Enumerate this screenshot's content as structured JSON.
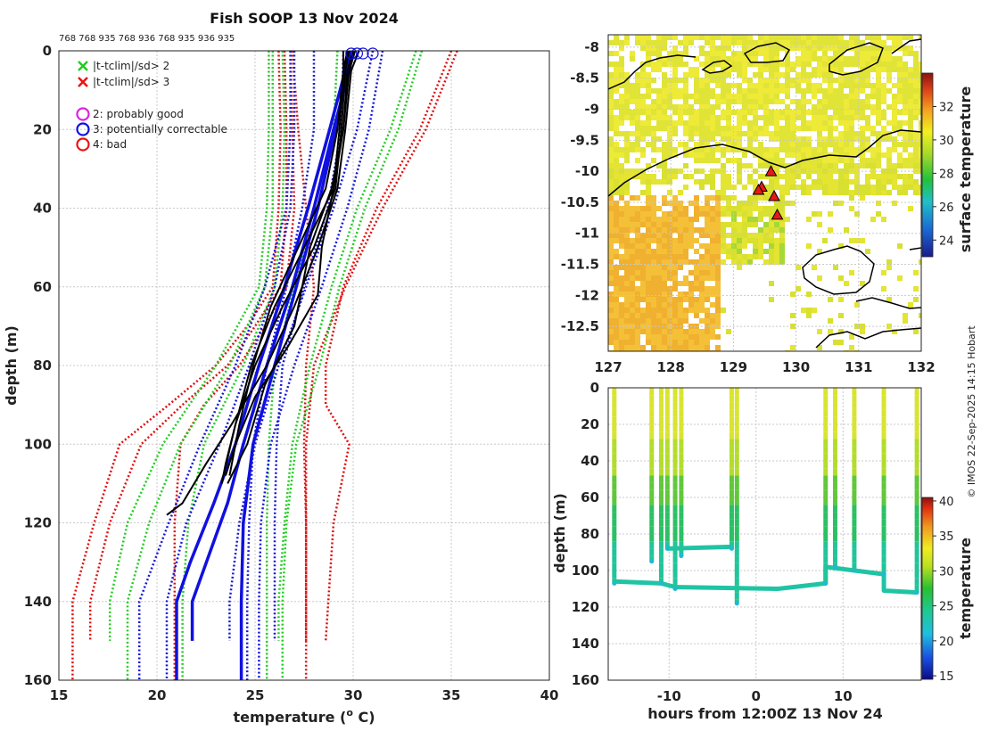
{
  "chart_data": [
    {
      "type": "line",
      "title": "Fish SOOP 13 Nov 2024",
      "top_labels": "768 768 935 768 936 768 935 936 935",
      "xlabel": "temperature (",
      "xlabel_sup": "o",
      "xlabel_end": " C)",
      "ylabel": "depth (m)",
      "xlim": [
        15,
        40
      ],
      "ylim": [
        0,
        160
      ],
      "x_ticks": [
        "15",
        "20",
        "25",
        "30",
        "35",
        "40"
      ],
      "y_ticks": [
        "0",
        "20",
        "40",
        "60",
        "80",
        "100",
        "120",
        "140",
        "160"
      ],
      "legend": [
        {
          "marker": "x",
          "color": "#22cc22",
          "label": "|t-tclim|/sd> 2"
        },
        {
          "marker": "x",
          "color": "#ee1111",
          "label": "|t-tclim|/sd> 3"
        },
        {
          "marker": "o",
          "color": "#dd22dd",
          "label": "2: probably good"
        },
        {
          "marker": "o",
          "color": "#1111dd",
          "label": "3: potentially correctable"
        },
        {
          "marker": "o",
          "color": "#ee1111",
          "label": "4: bad"
        }
      ],
      "climatology_red": [
        {
          "depth": [
            0,
            20,
            40,
            60,
            80,
            100,
            120,
            140,
            150
          ],
          "temp": [
            26.9,
            27.2,
            27.6,
            28.0,
            27.6,
            27.5,
            27.6,
            27.6,
            27.6
          ]
        },
        {
          "depth": [
            0,
            20,
            40,
            60,
            80,
            100,
            120,
            140,
            160
          ],
          "temp": [
            35.3,
            33.7,
            31.5,
            29.6,
            28.0,
            27.6,
            27.6,
            27.6,
            27.6
          ]
        },
        {
          "depth": [
            0,
            20,
            40,
            60,
            80,
            90,
            100,
            120,
            150
          ],
          "temp": [
            35.0,
            33.4,
            31.2,
            29.5,
            28.6,
            28.6,
            29.8,
            29.0,
            28.6
          ]
        },
        {
          "depth": [
            0,
            20,
            40,
            60,
            70,
            80,
            90,
            100,
            120,
            140,
            160
          ],
          "temp": [
            26.8,
            26.9,
            27.0,
            26.6,
            25.5,
            24.2,
            22.4,
            21.2,
            20.9,
            20.9,
            20.9
          ]
        },
        {
          "depth": [
            0,
            20,
            40,
            60,
            70,
            80,
            90,
            100,
            120,
            140,
            150
          ],
          "temp": [
            26.5,
            26.6,
            26.6,
            26.3,
            25.0,
            23.6,
            21.3,
            19.2,
            17.6,
            16.6,
            16.6
          ]
        },
        {
          "depth": [
            0,
            20,
            40,
            60,
            70,
            80,
            90,
            100,
            120,
            140,
            160
          ],
          "temp": [
            26.2,
            26.3,
            26.2,
            25.9,
            24.6,
            23.0,
            20.6,
            18.1,
            16.8,
            15.7,
            15.7
          ]
        }
      ],
      "climatology_green": [
        {
          "depth": [
            0,
            20,
            40,
            60,
            80,
            100,
            120,
            140,
            160
          ],
          "temp": [
            33.5,
            32.3,
            30.6,
            29.3,
            28.3,
            27.1,
            26.6,
            26.4,
            26.4
          ]
        },
        {
          "depth": [
            0,
            20,
            40,
            60,
            80,
            100,
            120,
            140,
            150
          ],
          "temp": [
            33.2,
            31.9,
            30.2,
            28.9,
            27.8,
            26.9,
            26.5,
            26.2,
            26.2
          ]
        },
        {
          "depth": [
            0,
            20,
            40,
            60,
            80,
            100,
            120,
            140,
            160
          ],
          "temp": [
            26.4,
            26.5,
            26.4,
            26.0,
            24.4,
            22.4,
            21.6,
            21.3,
            21.3
          ]
        },
        {
          "depth": [
            0,
            20,
            40,
            60,
            80,
            100,
            120,
            140,
            160
          ],
          "temp": [
            25.9,
            25.9,
            25.9,
            25.5,
            23.7,
            21.2,
            19.6,
            18.5,
            18.5
          ]
        },
        {
          "depth": [
            0,
            20,
            40,
            60,
            80,
            100,
            120,
            140,
            150
          ],
          "temp": [
            25.7,
            25.7,
            25.6,
            25.2,
            23.0,
            20.3,
            18.5,
            17.6,
            17.6
          ]
        },
        {
          "depth": [
            0,
            20,
            40,
            60,
            80,
            100,
            120,
            140,
            160
          ],
          "temp": [
            29.2,
            29.0,
            28.2,
            27.0,
            26.0,
            25.7,
            25.6,
            25.6,
            25.6
          ]
        }
      ],
      "climatology_blue": [
        {
          "depth": [
            0,
            20,
            40,
            60,
            80,
            100,
            120,
            140,
            160
          ],
          "temp": [
            31.5,
            30.8,
            29.7,
            28.4,
            27.0,
            25.8,
            25.3,
            25.2,
            25.2
          ]
        },
        {
          "depth": [
            0,
            20,
            40,
            60,
            80,
            100,
            120,
            140,
            150
          ],
          "temp": [
            31.0,
            30.2,
            29.0,
            27.6,
            26.2,
            25.0,
            24.2,
            23.7,
            23.7
          ]
        },
        {
          "depth": [
            0,
            20,
            40,
            60,
            80,
            100,
            120,
            140,
            160
          ],
          "temp": [
            28.0,
            28.0,
            27.4,
            26.6,
            25.6,
            24.9,
            24.7,
            24.6,
            24.6
          ]
        },
        {
          "depth": [
            0,
            20,
            40,
            60,
            80,
            100,
            120,
            140,
            160
          ],
          "temp": [
            27.0,
            27.0,
            26.8,
            26.0,
            24.7,
            23.2,
            21.5,
            20.5,
            20.5
          ]
        },
        {
          "depth": [
            0,
            20,
            40,
            60,
            80,
            100,
            120,
            140,
            160
          ],
          "temp": [
            26.8,
            26.8,
            26.6,
            25.5,
            24.0,
            22.2,
            20.6,
            19.1,
            19.1
          ]
        },
        {
          "depth": [
            0,
            20,
            40,
            60,
            80,
            100,
            120,
            140,
            150
          ],
          "temp": [
            29.5,
            29.4,
            28.7,
            27.5,
            26.4,
            26.1,
            26.0,
            26.0,
            26.0
          ]
        }
      ],
      "profiles_blue": [
        {
          "depth": [
            0,
            5,
            20,
            40,
            60,
            80,
            100,
            120,
            140,
            160
          ],
          "temp": [
            29.9,
            29.7,
            29.1,
            28.2,
            27.1,
            26.0,
            24.9,
            24.4,
            24.3,
            24.3
          ]
        },
        {
          "depth": [
            0,
            5,
            20,
            40,
            60,
            80,
            100,
            115,
            140,
            150
          ],
          "temp": [
            30.0,
            29.8,
            29.0,
            28.0,
            26.9,
            25.6,
            24.4,
            23.6,
            21.8,
            21.8
          ]
        },
        {
          "depth": [
            0,
            5,
            20,
            40,
            60,
            80,
            100,
            115,
            130,
            140,
            160
          ],
          "temp": [
            29.8,
            29.6,
            28.8,
            27.7,
            26.5,
            25.2,
            24.0,
            22.9,
            21.7,
            21.0,
            21.0
          ]
        }
      ],
      "profiles_black": [
        {
          "depth": [
            0,
            5,
            20,
            35,
            50,
            65,
            80,
            95,
            105,
            115,
            118
          ],
          "temp": [
            30.3,
            29.9,
            29.6,
            29.2,
            28.2,
            27.0,
            25.6,
            23.8,
            22.5,
            21.3,
            20.5
          ]
        },
        {
          "depth": [
            0,
            5,
            20,
            35,
            50,
            65,
            80,
            95,
            105,
            110
          ],
          "temp": [
            29.8,
            29.6,
            29.4,
            29.1,
            28.0,
            26.4,
            25.0,
            24.0,
            23.5,
            23.3
          ]
        },
        {
          "depth": [
            0,
            5,
            20,
            35,
            50,
            62,
            75,
            88,
            100,
            108
          ],
          "temp": [
            29.5,
            29.5,
            29.3,
            29.0,
            28.4,
            28.2,
            26.7,
            25.0,
            24.0,
            23.5
          ]
        },
        {
          "depth": [
            0,
            5,
            20,
            35,
            50,
            65,
            80,
            95,
            110
          ],
          "temp": [
            30.0,
            29.7,
            29.5,
            29.0,
            27.5,
            26.0,
            24.8,
            24.0,
            23.3
          ]
        },
        {
          "depth": [
            0,
            5,
            20,
            35,
            50,
            65,
            80,
            95,
            108
          ],
          "temp": [
            29.7,
            29.5,
            29.2,
            28.6,
            27.2,
            25.8,
            24.9,
            24.2,
            23.7
          ]
        },
        {
          "depth": [
            0,
            5,
            20,
            35,
            50,
            70,
            85,
            100,
            110
          ],
          "temp": [
            30.1,
            29.8,
            29.5,
            28.9,
            27.8,
            27.0,
            25.5,
            24.6,
            23.6
          ]
        }
      ],
      "flag_markers": [
        {
          "temp": 29.9,
          "depth": 0,
          "color": "#1111dd"
        },
        {
          "temp": 30.2,
          "depth": 0,
          "color": "#1111dd"
        },
        {
          "temp": 30.5,
          "depth": 0,
          "color": "#1111dd"
        },
        {
          "temp": 31.0,
          "depth": 0,
          "color": "#1111dd"
        }
      ]
    },
    {
      "type": "heatmap",
      "title": "",
      "xlim": [
        127,
        132
      ],
      "ylim": [
        -12.9,
        -7.8
      ],
      "x_ticks": [
        "127",
        "128",
        "129",
        "130",
        "131",
        "132"
      ],
      "y_ticks": [
        "-8",
        "-8.5",
        "-9",
        "-9.5",
        "-10",
        "-10.5",
        "-11",
        "-11.5",
        "-12",
        "-12.5"
      ],
      "colorbar_label": "surface temperature",
      "colorbar_ticks": [
        "24",
        "26",
        "28",
        "30",
        "32"
      ],
      "colorbar_range": [
        23,
        34
      ],
      "stations": [
        {
          "lon": 129.6,
          "lat": -10.0
        },
        {
          "lon": 129.45,
          "lat": -10.25
        },
        {
          "lon": 129.4,
          "lat": -10.3
        },
        {
          "lon": 129.65,
          "lat": -10.4
        },
        {
          "lon": 129.7,
          "lat": -10.7
        }
      ]
    },
    {
      "type": "scatter",
      "title": "",
      "xlabel": "hours from 12:00Z 13 Nov 24",
      "ylabel": "depth (m)",
      "xlim": [
        -17,
        19
      ],
      "ylim": [
        0,
        160
      ],
      "x_ticks": [
        "-10",
        "0",
        "10"
      ],
      "y_ticks": [
        "0",
        "20",
        "40",
        "60",
        "80",
        "100",
        "120",
        "140",
        "160"
      ],
      "colorbar_label": "temperature",
      "colorbar_ticks": [
        "15",
        "20",
        "25",
        "30",
        "35",
        "40"
      ],
      "colorbar_range": [
        14.5,
        40.5
      ],
      "drops": [
        {
          "hour": -16.3,
          "max_depth": 107
        },
        {
          "hour": -12.0,
          "max_depth": 95
        },
        {
          "hour": -10.9,
          "max_depth": 107
        },
        {
          "hour": -10.2,
          "max_depth": 88
        },
        {
          "hour": -9.3,
          "max_depth": 110
        },
        {
          "hour": -8.6,
          "max_depth": 92
        },
        {
          "hour": -2.8,
          "max_depth": 88
        },
        {
          "hour": -2.2,
          "max_depth": 118
        },
        {
          "hour": 8.0,
          "max_depth": 107
        },
        {
          "hour": 9.1,
          "max_depth": 98
        },
        {
          "hour": 11.3,
          "max_depth": 100
        },
        {
          "hour": 14.7,
          "max_depth": 102
        },
        {
          "hour": 18.5,
          "max_depth": 112
        }
      ],
      "bottom_track": [
        {
          "hour": -16.3,
          "depth": 106
        },
        {
          "hour": -10.9,
          "depth": 107
        },
        {
          "hour": -9.3,
          "depth": 109
        },
        {
          "hour": 2.5,
          "depth": 110
        },
        {
          "hour": 8.0,
          "depth": 107
        },
        {
          "hour": 8.0,
          "depth": 98
        },
        {
          "hour": 14.7,
          "depth": 102
        },
        {
          "hour": 14.7,
          "depth": 111
        },
        {
          "hour": 18.5,
          "depth": 112
        }
      ],
      "mid_track": [
        {
          "hour": -10.2,
          "depth": 88
        },
        {
          "hour": -2.8,
          "depth": 87
        }
      ]
    }
  ],
  "credit": "© IMOS 22-Sep-2025 14:15 Hobart"
}
